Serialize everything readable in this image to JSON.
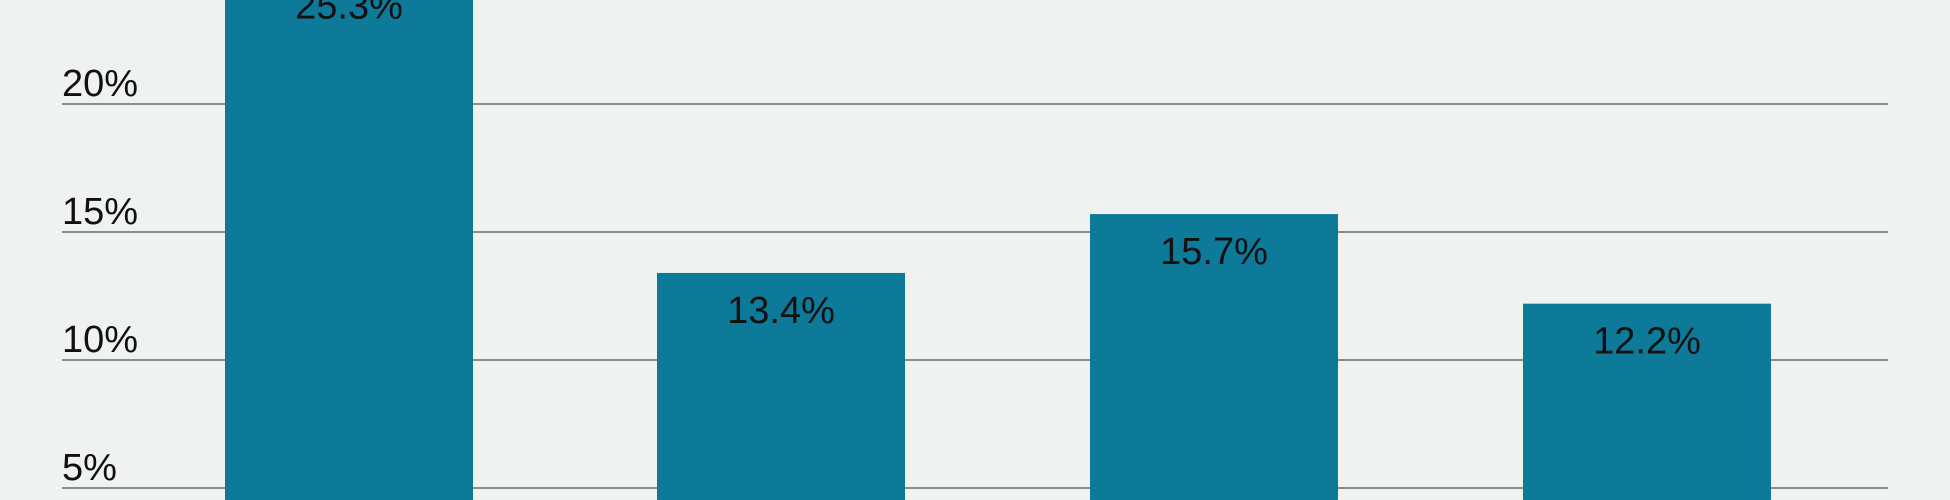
{
  "chart_data": {
    "type": "bar",
    "categories": [
      "",
      "",
      "",
      ""
    ],
    "values": [
      25.3,
      13.4,
      15.7,
      12.2
    ],
    "value_labels": [
      "25.3%",
      "13.4%",
      "15.7%",
      "12.2%"
    ],
    "y_ticks": [
      5,
      10,
      15,
      20
    ],
    "y_tick_labels": [
      "5%",
      "10%",
      "15%",
      "20%"
    ],
    "ylim": [
      0,
      25.3
    ],
    "grid": true,
    "title": "",
    "xlabel": "",
    "ylabel": "",
    "colors": {
      "bar": "#0e7a99",
      "background": "#f0f1f1",
      "gridline": "#6b6b6b",
      "text": "#111111"
    }
  }
}
